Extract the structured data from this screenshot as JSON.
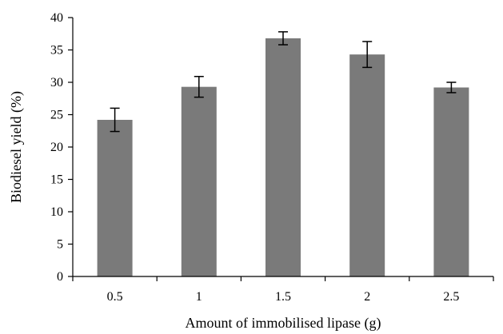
{
  "chart_data": {
    "type": "bar",
    "categories": [
      "0.5",
      "1",
      "1.5",
      "2",
      "2.5"
    ],
    "values": [
      24.2,
      29.3,
      36.8,
      34.3,
      29.2
    ],
    "errors": [
      1.8,
      1.6,
      1.0,
      2.0,
      0.8
    ],
    "title": "",
    "xlabel": "Amount of immobilised lipase (g)",
    "ylabel": "Biodiesel yield (%)",
    "ylim": [
      0,
      40
    ],
    "yticks": [
      "0",
      "5",
      "10",
      "15",
      "20",
      "25",
      "30",
      "35",
      "40"
    ],
    "grid": false,
    "legend": "none",
    "colors": {
      "bar": "#7a7a7a",
      "axis": "#000000",
      "error_bar": "#000000"
    }
  }
}
